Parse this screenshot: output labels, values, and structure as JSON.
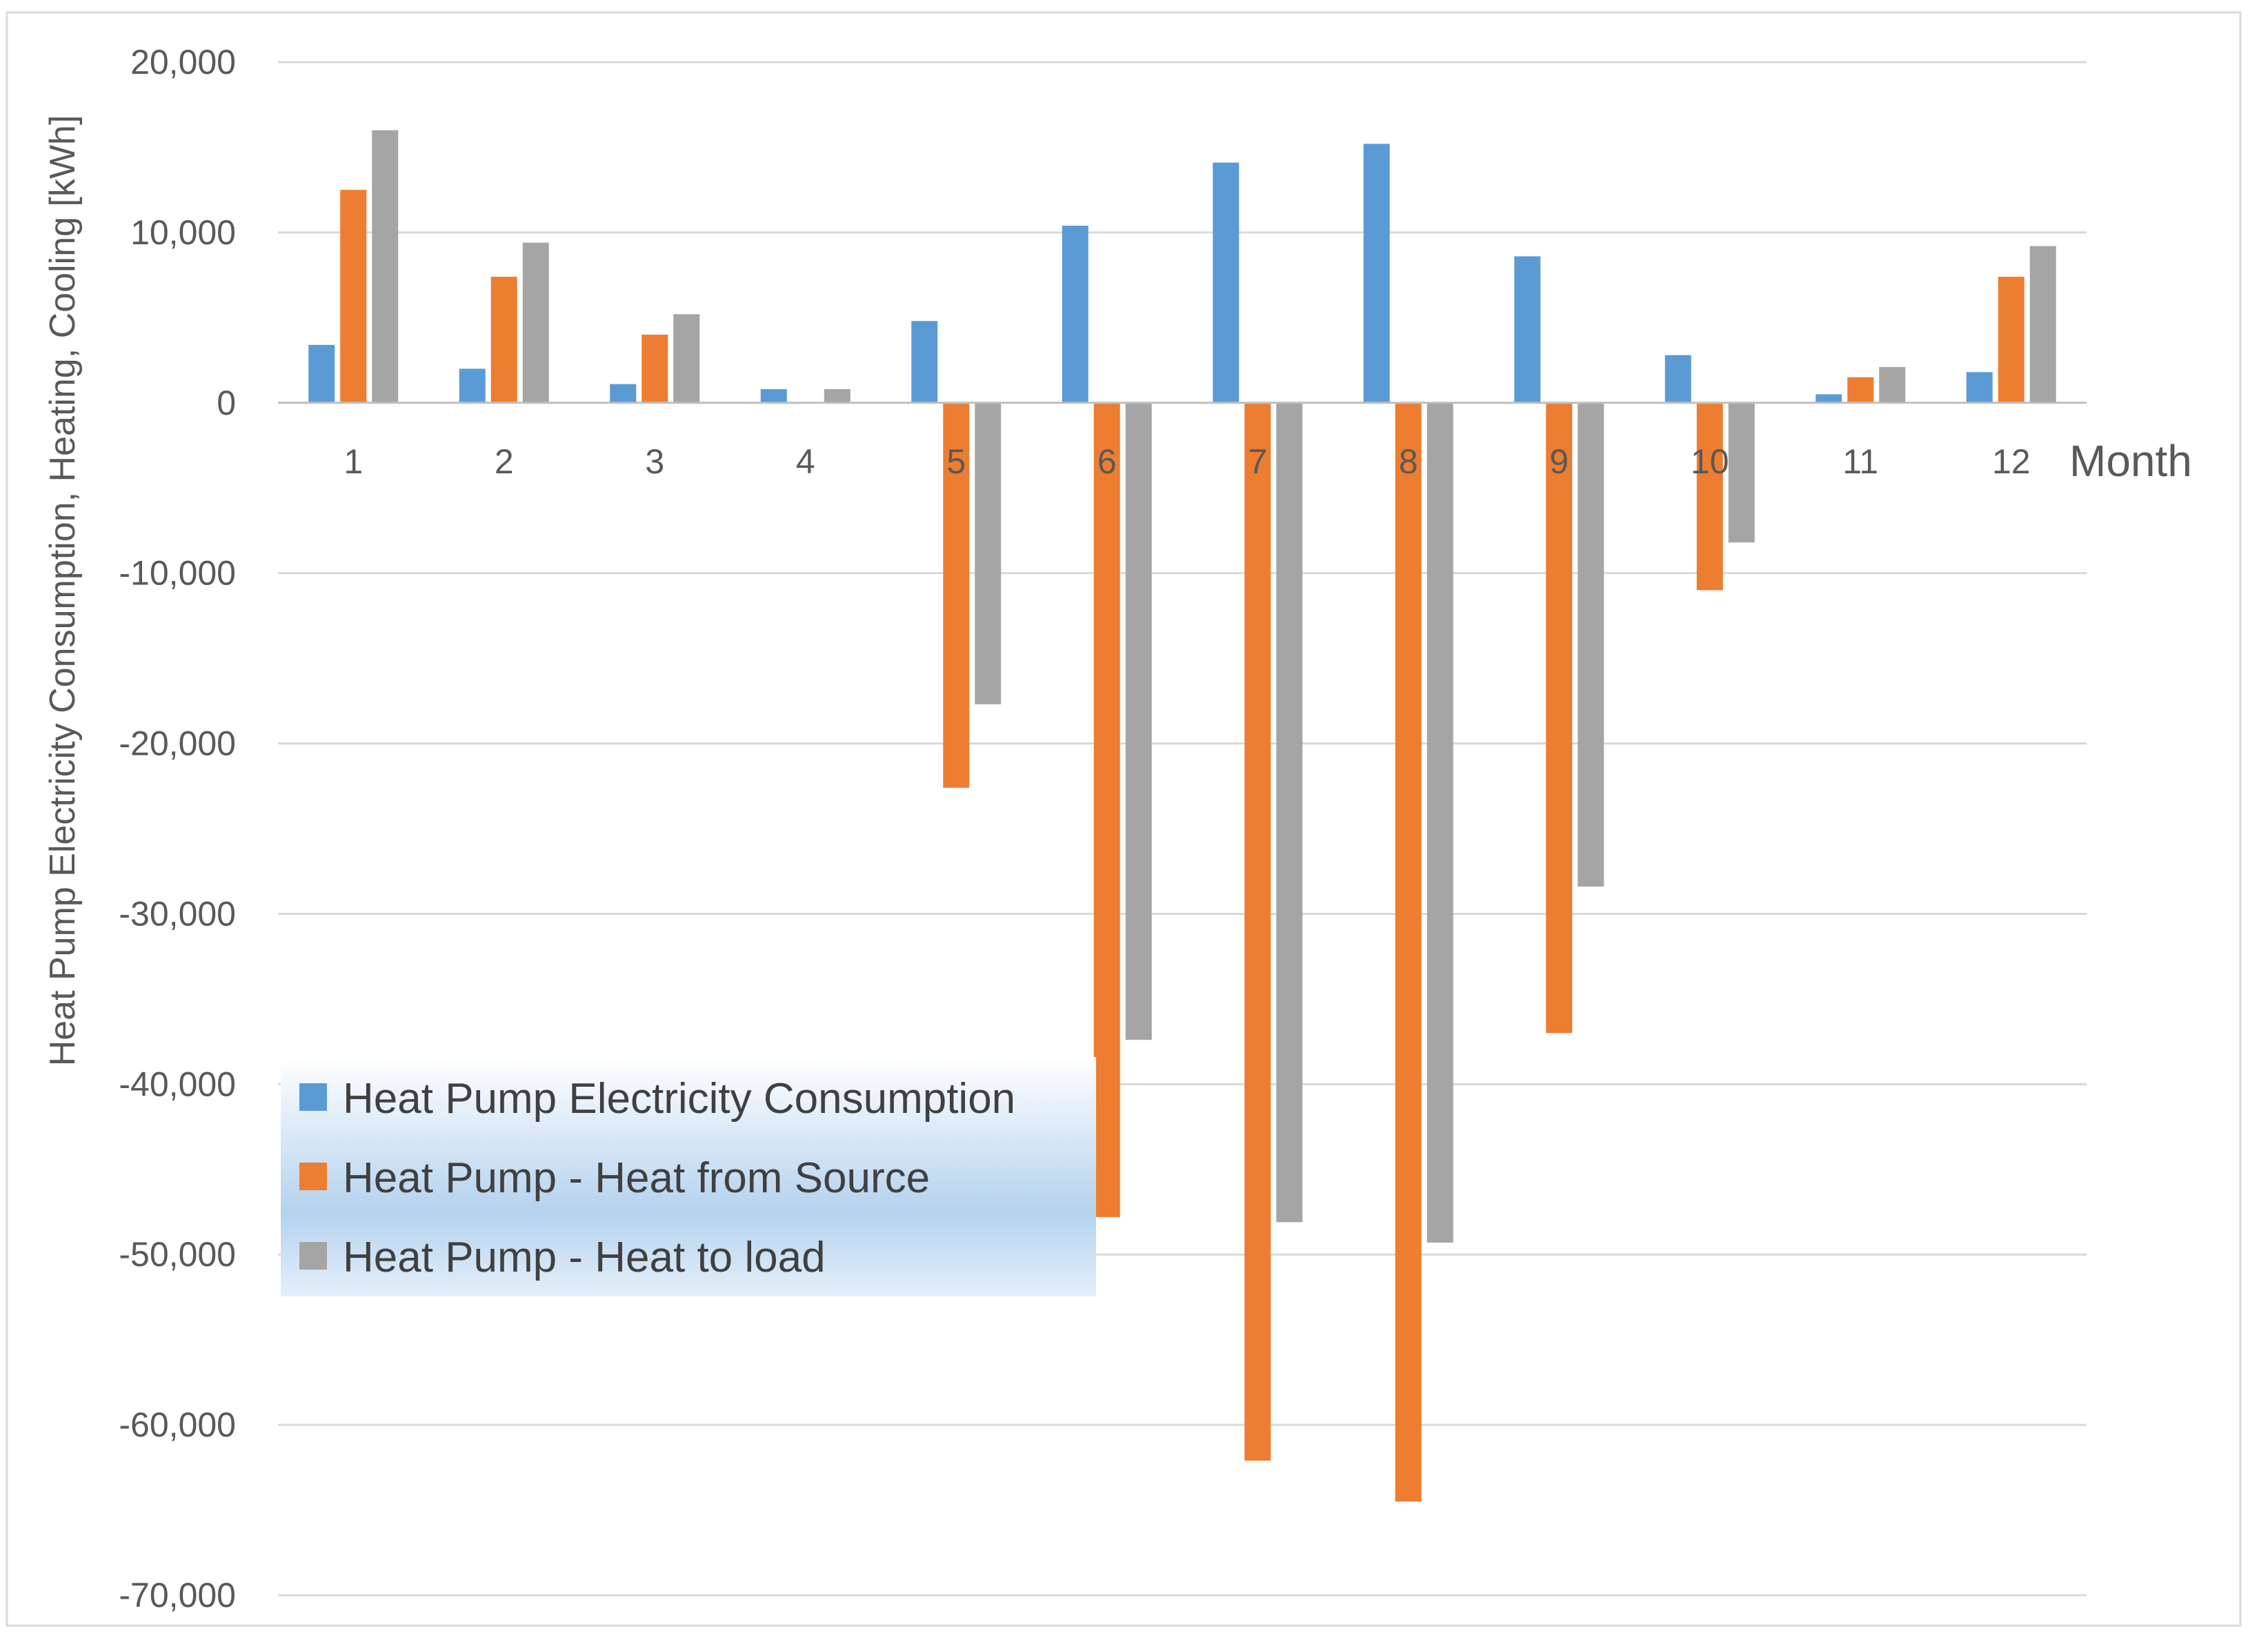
{
  "chart_data": {
    "type": "bar",
    "title": "",
    "xlabel": "Month",
    "ylabel": "Heat Pump Electricity Consumption, Heating, Cooling [kWh]",
    "ylim": [
      -70000,
      20000
    ],
    "yticks": [
      20000,
      10000,
      0,
      -10000,
      -20000,
      -30000,
      -40000,
      -50000,
      -60000,
      -70000
    ],
    "ytick_labels": [
      "20,000",
      "10,000",
      "0",
      "-10,000",
      "-20,000",
      "-30,000",
      "-40,000",
      "-50,000",
      "-60,000",
      "-70,000"
    ],
    "grid": true,
    "legend_position": "bottom-left",
    "categories": [
      "1",
      "2",
      "3",
      "4",
      "5",
      "6",
      "7",
      "8",
      "9",
      "10",
      "11",
      "12"
    ],
    "series": [
      {
        "name": "Heat Pump Electricity Consumption",
        "color": "#5B9BD5",
        "values": [
          3400,
          2000,
          1100,
          800,
          4800,
          10400,
          14100,
          15200,
          8600,
          2800,
          500,
          1800
        ]
      },
      {
        "name": "Heat Pump - Heat from Source",
        "color": "#ED7D31",
        "values": [
          12500,
          7400,
          4000,
          0,
          -22600,
          -47800,
          -62100,
          -64500,
          -37000,
          -11000,
          1500,
          7400
        ]
      },
      {
        "name": "Heat Pump - Heat to load",
        "color": "#A5A5A5",
        "values": [
          16000,
          9400,
          5200,
          800,
          -17700,
          -37400,
          -48100,
          -49300,
          -28400,
          -8200,
          2100,
          9200
        ]
      }
    ]
  }
}
